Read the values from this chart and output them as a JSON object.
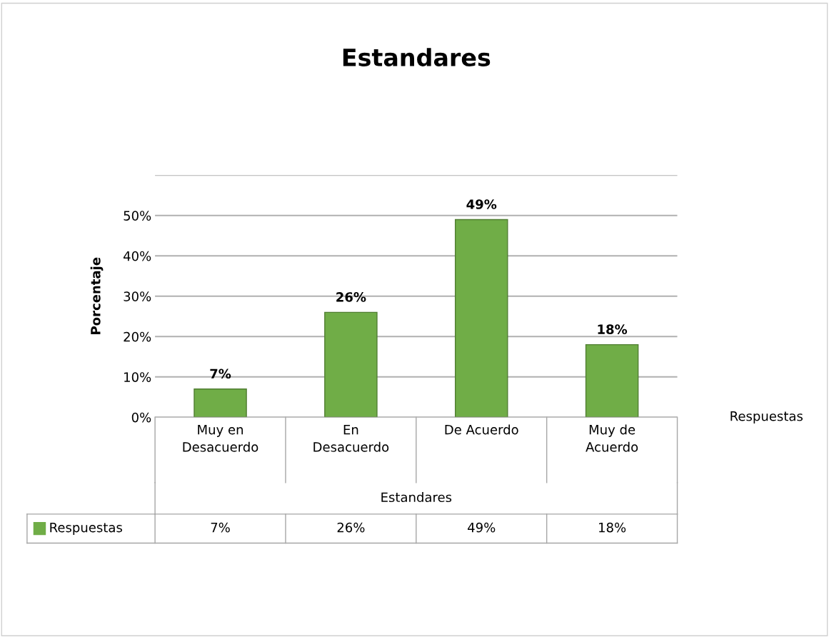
{
  "chart_data": {
    "type": "bar",
    "title": "Estandares",
    "xlabel": "Estandares",
    "ylabel": "Porcentaje",
    "categories": [
      "Muy en\nDesacuerdo",
      "En\nDesacuerdo",
      "De Acuerdo",
      "Muy de\nAcuerdo"
    ],
    "series": [
      {
        "name": "Respuestas",
        "color": "#70ad47",
        "values": [
          7,
          26,
          49,
          18
        ],
        "value_labels": [
          "7%",
          "26%",
          "49%",
          "18%"
        ]
      }
    ],
    "ylim": [
      0,
      60
    ],
    "yticks": [
      {
        "value": 0,
        "label": "0%"
      },
      {
        "value": 10,
        "label": "10%"
      },
      {
        "value": 20,
        "label": "20%"
      },
      {
        "value": 30,
        "label": "30%"
      },
      {
        "value": 40,
        "label": "40%"
      },
      {
        "value": 50,
        "label": "50%"
      },
      {
        "value": 60,
        "label": null
      }
    ],
    "grid": "y",
    "legend": "bottom",
    "annotations": [
      "Respuestas"
    ]
  }
}
